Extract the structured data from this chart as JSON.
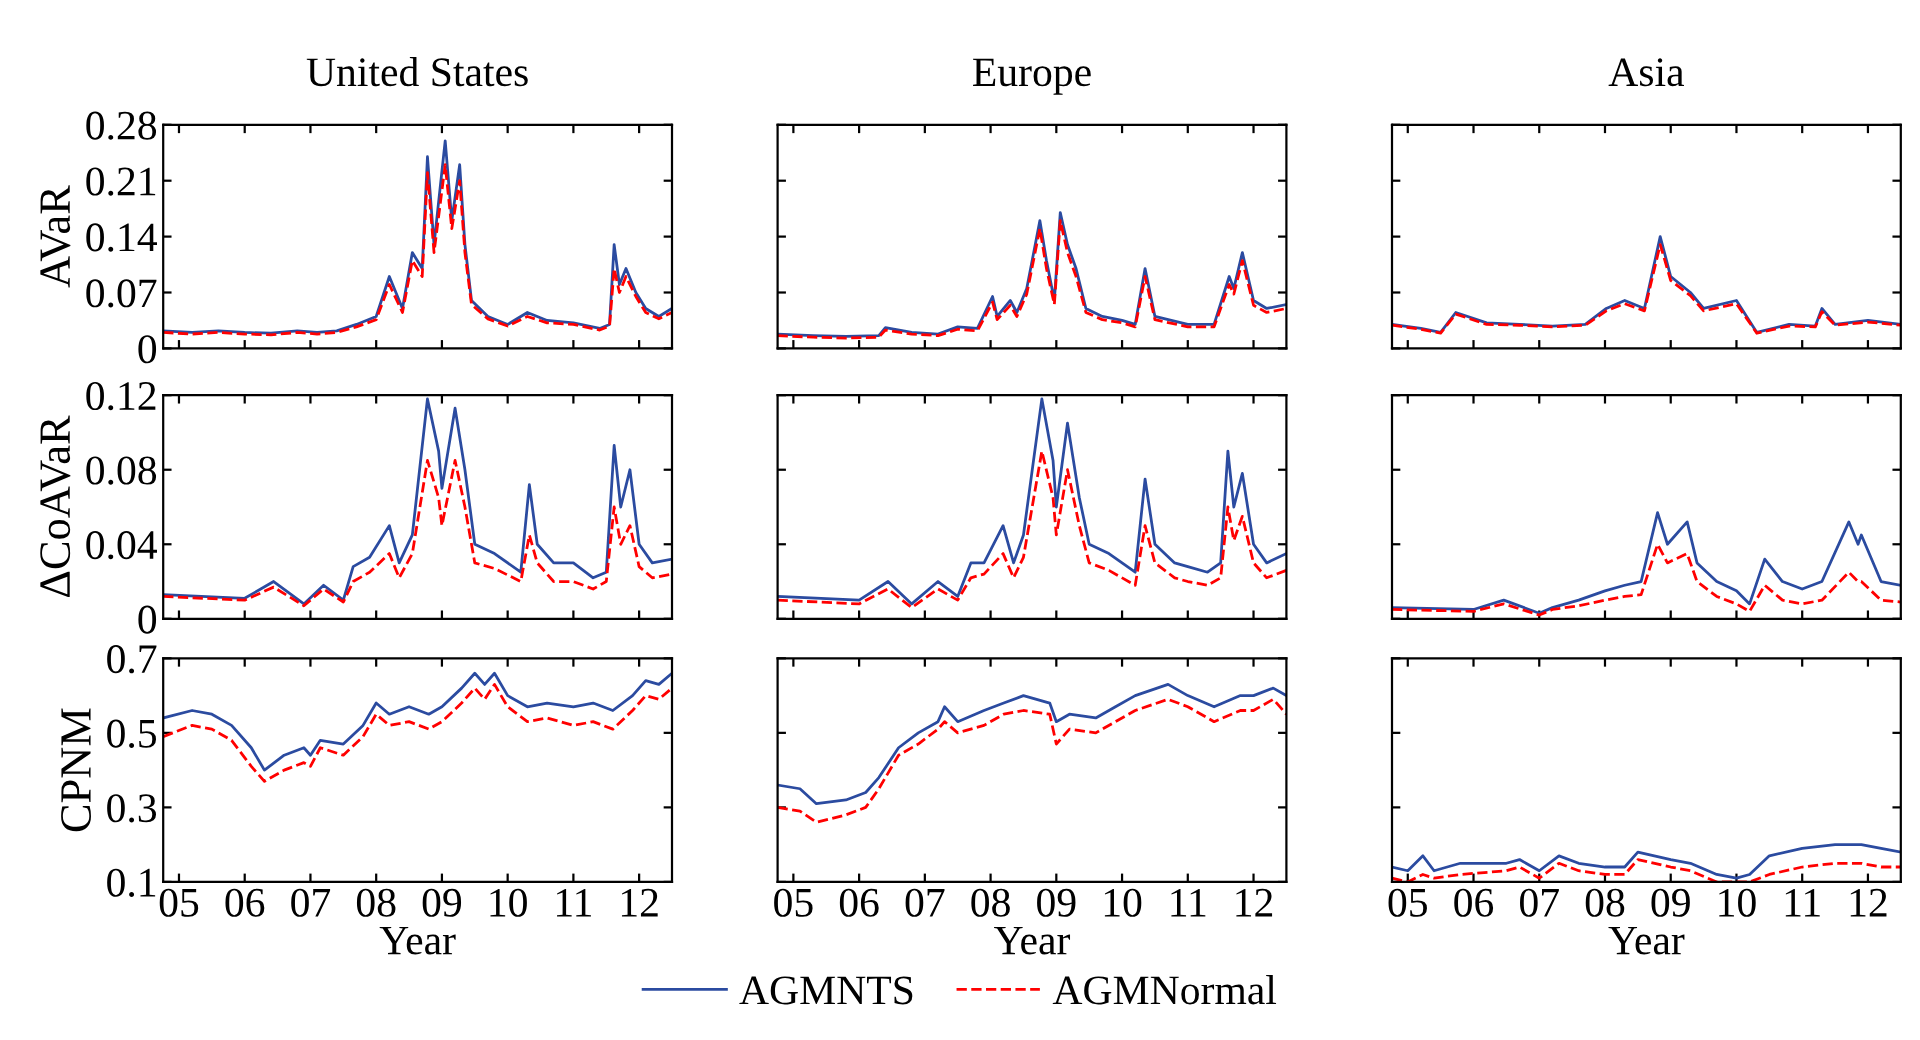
{
  "chart_data": [
    {
      "type": "line",
      "title": "United States",
      "ylabel": "AVaR",
      "tick_labels": "y",
      "xlim": [
        2004.76,
        2012.5
      ],
      "ylim": [
        0,
        0.28
      ],
      "yticks": [
        0,
        0.07,
        0.14,
        0.21,
        0.28
      ],
      "xticks": [
        {
          "value": 2005,
          "label": null
        },
        {
          "value": 2006,
          "label": null
        },
        {
          "value": 2007,
          "label": null
        },
        {
          "value": 2008,
          "label": null
        },
        {
          "value": 2009,
          "label": null
        },
        {
          "value": 2010,
          "label": null
        },
        {
          "value": 2011,
          "label": null
        },
        {
          "value": 2012,
          "label": null
        }
      ],
      "x": [
        2004.76,
        2005.2,
        2005.6,
        2006.0,
        2006.4,
        2006.8,
        2007.1,
        2007.4,
        2007.7,
        2008.0,
        2008.2,
        2008.4,
        2008.55,
        2008.7,
        2008.78,
        2008.88,
        2009.05,
        2009.15,
        2009.27,
        2009.35,
        2009.45,
        2009.7,
        2010.0,
        2010.3,
        2010.6,
        2011.0,
        2011.4,
        2011.55,
        2011.62,
        2011.7,
        2011.8,
        2011.95,
        2012.1,
        2012.3,
        2012.5
      ],
      "series": [
        {
          "color": "#2b4ba0",
          "line_style": "solid",
          "values": [
            0.022,
            0.02,
            0.022,
            0.02,
            0.019,
            0.022,
            0.02,
            0.022,
            0.03,
            0.04,
            0.09,
            0.05,
            0.12,
            0.1,
            0.24,
            0.13,
            0.26,
            0.16,
            0.23,
            0.13,
            0.06,
            0.04,
            0.03,
            0.045,
            0.035,
            0.032,
            0.025,
            0.03,
            0.13,
            0.08,
            0.1,
            0.07,
            0.05,
            0.04,
            0.05
          ]
        },
        {
          "color": "#ff0000",
          "line_style": "dashed",
          "values": [
            0.02,
            0.018,
            0.02,
            0.018,
            0.017,
            0.02,
            0.018,
            0.02,
            0.027,
            0.036,
            0.08,
            0.045,
            0.11,
            0.09,
            0.22,
            0.12,
            0.23,
            0.15,
            0.21,
            0.12,
            0.055,
            0.037,
            0.028,
            0.04,
            0.032,
            0.03,
            0.023,
            0.028,
            0.1,
            0.07,
            0.09,
            0.065,
            0.045,
            0.037,
            0.045
          ]
        }
      ]
    },
    {
      "type": "line",
      "title": "Europe",
      "tick_labels": false,
      "xlim": [
        2004.76,
        2012.5
      ],
      "ylim": [
        0,
        0.28
      ],
      "yticks": [
        0,
        0.07,
        0.14,
        0.21,
        0.28
      ],
      "xticks": [
        {
          "value": 2005,
          "label": null
        },
        {
          "value": 2006,
          "label": null
        },
        {
          "value": 2007,
          "label": null
        },
        {
          "value": 2008,
          "label": null
        },
        {
          "value": 2009,
          "label": null
        },
        {
          "value": 2010,
          "label": null
        },
        {
          "value": 2011,
          "label": null
        },
        {
          "value": 2012,
          "label": null
        }
      ],
      "x": [
        2004.76,
        2005.3,
        2005.8,
        2006.3,
        2006.4,
        2006.8,
        2007.2,
        2007.5,
        2007.8,
        2008.03,
        2008.1,
        2008.3,
        2008.4,
        2008.55,
        2008.75,
        2008.85,
        2008.97,
        2009.06,
        2009.17,
        2009.3,
        2009.45,
        2009.7,
        2010.0,
        2010.2,
        2010.35,
        2010.5,
        2011.0,
        2011.4,
        2011.63,
        2011.7,
        2011.83,
        2012.0,
        2012.2,
        2012.5
      ],
      "series": [
        {
          "color": "#2b4ba0",
          "line_style": "solid",
          "values": [
            0.018,
            0.016,
            0.015,
            0.016,
            0.026,
            0.02,
            0.018,
            0.027,
            0.025,
            0.065,
            0.04,
            0.06,
            0.045,
            0.075,
            0.16,
            0.11,
            0.06,
            0.17,
            0.13,
            0.1,
            0.05,
            0.04,
            0.035,
            0.03,
            0.1,
            0.04,
            0.03,
            0.03,
            0.09,
            0.075,
            0.12,
            0.06,
            0.05,
            0.055
          ]
        },
        {
          "color": "#ff0000",
          "line_style": "dashed",
          "values": [
            0.016,
            0.014,
            0.013,
            0.014,
            0.023,
            0.018,
            0.016,
            0.024,
            0.022,
            0.058,
            0.036,
            0.054,
            0.04,
            0.068,
            0.15,
            0.1,
            0.055,
            0.16,
            0.12,
            0.09,
            0.045,
            0.036,
            0.032,
            0.027,
            0.09,
            0.036,
            0.027,
            0.027,
            0.08,
            0.068,
            0.11,
            0.054,
            0.045,
            0.05
          ]
        }
      ]
    },
    {
      "type": "line",
      "title": "Asia",
      "tick_labels": false,
      "xlim": [
        2004.76,
        2012.5
      ],
      "ylim": [
        0,
        0.28
      ],
      "yticks": [
        0,
        0.07,
        0.14,
        0.21,
        0.28
      ],
      "xticks": [
        {
          "value": 2005,
          "label": null
        },
        {
          "value": 2006,
          "label": null
        },
        {
          "value": 2007,
          "label": null
        },
        {
          "value": 2008,
          "label": null
        },
        {
          "value": 2009,
          "label": null
        },
        {
          "value": 2010,
          "label": null
        },
        {
          "value": 2011,
          "label": null
        },
        {
          "value": 2012,
          "label": null
        }
      ],
      "x": [
        2004.76,
        2005.2,
        2005.5,
        2005.73,
        2006.2,
        2006.7,
        2007.2,
        2007.7,
        2008.02,
        2008.3,
        2008.6,
        2008.84,
        2009.0,
        2009.3,
        2009.5,
        2010.0,
        2010.31,
        2010.8,
        2011.2,
        2011.3,
        2011.5,
        2012.0,
        2012.5
      ],
      "series": [
        {
          "color": "#2b4ba0",
          "line_style": "solid",
          "values": [
            0.03,
            0.025,
            0.02,
            0.045,
            0.032,
            0.03,
            0.028,
            0.03,
            0.05,
            0.06,
            0.05,
            0.14,
            0.09,
            0.07,
            0.05,
            0.06,
            0.02,
            0.03,
            0.028,
            0.05,
            0.03,
            0.035,
            0.03
          ]
        },
        {
          "color": "#ff0000",
          "line_style": "dashed",
          "values": [
            0.029,
            0.024,
            0.019,
            0.043,
            0.03,
            0.029,
            0.027,
            0.029,
            0.047,
            0.056,
            0.047,
            0.13,
            0.085,
            0.066,
            0.047,
            0.056,
            0.019,
            0.028,
            0.027,
            0.046,
            0.029,
            0.033,
            0.029
          ]
        }
      ]
    },
    {
      "type": "line",
      "ylabel": "ΔCoAVaR",
      "tick_labels": "y",
      "xlim": [
        2004.76,
        2012.5
      ],
      "ylim": [
        0,
        0.12
      ],
      "yticks": [
        0,
        0.04,
        0.08,
        0.12
      ],
      "xticks": [
        {
          "value": 2005,
          "label": null
        },
        {
          "value": 2006,
          "label": null
        },
        {
          "value": 2007,
          "label": null
        },
        {
          "value": 2008,
          "label": null
        },
        {
          "value": 2009,
          "label": null
        },
        {
          "value": 2010,
          "label": null
        },
        {
          "value": 2011,
          "label": null
        },
        {
          "value": 2012,
          "label": null
        }
      ],
      "x": [
        2004.76,
        2006.0,
        2006.44,
        2006.9,
        2007.2,
        2007.5,
        2007.65,
        2007.9,
        2008.2,
        2008.35,
        2008.55,
        2008.78,
        2008.95,
        2009.0,
        2009.2,
        2009.35,
        2009.5,
        2009.8,
        2010.2,
        2010.33,
        2010.45,
        2010.7,
        2011.0,
        2011.3,
        2011.5,
        2011.62,
        2011.72,
        2011.86,
        2012.0,
        2012.2,
        2012.5
      ],
      "series": [
        {
          "color": "#2b4ba0",
          "line_style": "solid",
          "values": [
            0.013,
            0.011,
            0.02,
            0.008,
            0.018,
            0.01,
            0.028,
            0.033,
            0.05,
            0.03,
            0.045,
            0.118,
            0.09,
            0.07,
            0.113,
            0.08,
            0.04,
            0.035,
            0.025,
            0.072,
            0.04,
            0.03,
            0.03,
            0.022,
            0.025,
            0.093,
            0.06,
            0.08,
            0.04,
            0.03,
            0.032
          ]
        },
        {
          "color": "#ff0000",
          "line_style": "dashed",
          "values": [
            0.012,
            0.01,
            0.017,
            0.007,
            0.016,
            0.009,
            0.02,
            0.025,
            0.035,
            0.022,
            0.035,
            0.085,
            0.065,
            0.05,
            0.085,
            0.06,
            0.03,
            0.027,
            0.02,
            0.045,
            0.03,
            0.02,
            0.02,
            0.016,
            0.02,
            0.06,
            0.04,
            0.05,
            0.028,
            0.022,
            0.024
          ]
        }
      ]
    },
    {
      "type": "line",
      "tick_labels": false,
      "xlim": [
        2004.76,
        2012.5
      ],
      "ylim": [
        0,
        0.12
      ],
      "yticks": [
        0,
        0.04,
        0.08,
        0.12
      ],
      "xticks": [
        {
          "value": 2005,
          "label": null
        },
        {
          "value": 2006,
          "label": null
        },
        {
          "value": 2007,
          "label": null
        },
        {
          "value": 2008,
          "label": null
        },
        {
          "value": 2009,
          "label": null
        },
        {
          "value": 2010,
          "label": null
        },
        {
          "value": 2011,
          "label": null
        },
        {
          "value": 2012,
          "label": null
        }
      ],
      "x": [
        2004.76,
        2006.0,
        2006.44,
        2006.8,
        2007.2,
        2007.5,
        2007.7,
        2007.9,
        2008.19,
        2008.35,
        2008.5,
        2008.78,
        2008.95,
        2009.0,
        2009.17,
        2009.35,
        2009.5,
        2009.8,
        2010.2,
        2010.35,
        2010.5,
        2010.8,
        2011.0,
        2011.3,
        2011.5,
        2011.61,
        2011.7,
        2011.83,
        2012.0,
        2012.2,
        2012.5
      ],
      "series": [
        {
          "color": "#2b4ba0",
          "line_style": "solid",
          "values": [
            0.012,
            0.01,
            0.02,
            0.008,
            0.02,
            0.012,
            0.03,
            0.03,
            0.05,
            0.03,
            0.045,
            0.118,
            0.085,
            0.06,
            0.105,
            0.065,
            0.04,
            0.035,
            0.025,
            0.075,
            0.04,
            0.03,
            0.028,
            0.025,
            0.03,
            0.09,
            0.06,
            0.078,
            0.04,
            0.03,
            0.035
          ]
        },
        {
          "color": "#ff0000",
          "line_style": "dashed",
          "values": [
            0.01,
            0.008,
            0.016,
            0.006,
            0.016,
            0.01,
            0.022,
            0.024,
            0.035,
            0.022,
            0.033,
            0.09,
            0.065,
            0.045,
            0.08,
            0.05,
            0.03,
            0.026,
            0.018,
            0.05,
            0.03,
            0.022,
            0.02,
            0.018,
            0.022,
            0.06,
            0.042,
            0.055,
            0.03,
            0.022,
            0.026
          ]
        }
      ]
    },
    {
      "type": "line",
      "tick_labels": false,
      "xlim": [
        2004.76,
        2012.5
      ],
      "ylim": [
        0,
        0.12
      ],
      "yticks": [
        0,
        0.04,
        0.08,
        0.12
      ],
      "xticks": [
        {
          "value": 2005,
          "label": null
        },
        {
          "value": 2006,
          "label": null
        },
        {
          "value": 2007,
          "label": null
        },
        {
          "value": 2008,
          "label": null
        },
        {
          "value": 2009,
          "label": null
        },
        {
          "value": 2010,
          "label": null
        },
        {
          "value": 2011,
          "label": null
        },
        {
          "value": 2012,
          "label": null
        }
      ],
      "x": [
        2004.76,
        2006.0,
        2006.46,
        2007.0,
        2007.2,
        2007.6,
        2008.0,
        2008.3,
        2008.55,
        2008.8,
        2008.95,
        2009.25,
        2009.4,
        2009.7,
        2010.0,
        2010.2,
        2010.43,
        2010.7,
        2011.0,
        2011.3,
        2011.71,
        2011.85,
        2011.9,
        2012.2,
        2012.5
      ],
      "series": [
        {
          "color": "#2b4ba0",
          "line_style": "solid",
          "values": [
            0.006,
            0.005,
            0.01,
            0.003,
            0.006,
            0.01,
            0.015,
            0.018,
            0.02,
            0.057,
            0.04,
            0.052,
            0.03,
            0.02,
            0.015,
            0.008,
            0.032,
            0.02,
            0.016,
            0.02,
            0.052,
            0.04,
            0.045,
            0.02,
            0.018
          ]
        },
        {
          "color": "#ff0000",
          "line_style": "dashed",
          "values": [
            0.005,
            0.004,
            0.008,
            0.002,
            0.005,
            0.007,
            0.01,
            0.012,
            0.013,
            0.04,
            0.03,
            0.035,
            0.02,
            0.012,
            0.008,
            0.004,
            0.018,
            0.01,
            0.008,
            0.01,
            0.025,
            0.02,
            0.02,
            0.01,
            0.009
          ]
        }
      ]
    },
    {
      "type": "line",
      "ylabel": "CPNM",
      "xlabel": "Year",
      "xlim": [
        2004.76,
        2012.5
      ],
      "ylim": [
        0.1,
        0.7
      ],
      "yticks": [
        0.1,
        0.3,
        0.5,
        0.7
      ],
      "xticks": [
        {
          "value": 2005,
          "label": "05"
        },
        {
          "value": 2006,
          "label": "06"
        },
        {
          "value": 2007,
          "label": "07"
        },
        {
          "value": 2008,
          "label": "08"
        },
        {
          "value": 2009,
          "label": "09"
        },
        {
          "value": 2010,
          "label": "10"
        },
        {
          "value": 2011,
          "label": "11"
        },
        {
          "value": 2012,
          "label": "12"
        }
      ],
      "x": [
        2004.76,
        2005.2,
        2005.5,
        2005.8,
        2006.1,
        2006.3,
        2006.6,
        2006.9,
        2007.0,
        2007.15,
        2007.5,
        2007.8,
        2008.0,
        2008.2,
        2008.5,
        2008.8,
        2009.0,
        2009.3,
        2009.5,
        2009.65,
        2009.8,
        2010.0,
        2010.3,
        2010.6,
        2011.0,
        2011.3,
        2011.6,
        2011.9,
        2012.1,
        2012.3,
        2012.5
      ],
      "series": [
        {
          "color": "#2b4ba0",
          "line_style": "solid",
          "values": [
            0.54,
            0.56,
            0.55,
            0.52,
            0.46,
            0.4,
            0.44,
            0.46,
            0.44,
            0.48,
            0.47,
            0.52,
            0.58,
            0.55,
            0.57,
            0.55,
            0.57,
            0.62,
            0.66,
            0.63,
            0.66,
            0.6,
            0.57,
            0.58,
            0.57,
            0.58,
            0.56,
            0.6,
            0.64,
            0.63,
            0.66
          ]
        },
        {
          "color": "#ff0000",
          "line_style": "dashed",
          "values": [
            0.49,
            0.52,
            0.51,
            0.48,
            0.41,
            0.37,
            0.4,
            0.42,
            0.41,
            0.46,
            0.44,
            0.49,
            0.55,
            0.52,
            0.53,
            0.51,
            0.53,
            0.58,
            0.62,
            0.59,
            0.63,
            0.57,
            0.53,
            0.54,
            0.52,
            0.53,
            0.51,
            0.56,
            0.6,
            0.59,
            0.62
          ]
        }
      ]
    },
    {
      "type": "line",
      "xlabel": "Year",
      "tick_labels": "x",
      "legend": "bottom",
      "xlim": [
        2004.76,
        2012.5
      ],
      "ylim": [
        0.1,
        0.7
      ],
      "yticks": [
        0.1,
        0.3,
        0.5,
        0.7
      ],
      "xticks": [
        {
          "value": 2005,
          "label": "05"
        },
        {
          "value": 2006,
          "label": "06"
        },
        {
          "value": 2007,
          "label": "07"
        },
        {
          "value": 2008,
          "label": "08"
        },
        {
          "value": 2009,
          "label": "09"
        },
        {
          "value": 2010,
          "label": "10"
        },
        {
          "value": 2011,
          "label": "11"
        },
        {
          "value": 2012,
          "label": "12"
        }
      ],
      "x": [
        2004.76,
        2005.1,
        2005.35,
        2005.8,
        2006.1,
        2006.3,
        2006.6,
        2006.9,
        2007.2,
        2007.3,
        2007.5,
        2007.9,
        2008.2,
        2008.5,
        2008.9,
        2009.0,
        2009.2,
        2009.6,
        2009.9,
        2010.2,
        2010.7,
        2011.0,
        2011.4,
        2011.8,
        2012.0,
        2012.3,
        2012.5
      ],
      "series": [
        {
          "name": "AGMNTS",
          "color": "#2b4ba0",
          "line_style": "solid",
          "values": [
            0.36,
            0.35,
            0.31,
            0.32,
            0.34,
            0.38,
            0.46,
            0.5,
            0.53,
            0.57,
            0.53,
            0.56,
            0.58,
            0.6,
            0.58,
            0.53,
            0.55,
            0.54,
            0.57,
            0.6,
            0.63,
            0.6,
            0.57,
            0.6,
            0.6,
            0.62,
            0.6
          ]
        },
        {
          "name": "AGMNormal",
          "color": "#ff0000",
          "line_style": "dashed",
          "values": [
            0.3,
            0.29,
            0.26,
            0.28,
            0.3,
            0.35,
            0.44,
            0.47,
            0.51,
            0.53,
            0.5,
            0.52,
            0.55,
            0.56,
            0.55,
            0.47,
            0.51,
            0.5,
            0.53,
            0.56,
            0.59,
            0.57,
            0.53,
            0.56,
            0.56,
            0.59,
            0.55
          ]
        }
      ]
    },
    {
      "type": "line",
      "xlabel": "Year",
      "tick_labels": "x",
      "xlim": [
        2004.76,
        2012.5
      ],
      "ylim": [
        0.1,
        0.7
      ],
      "yticks": [
        0.1,
        0.3,
        0.5,
        0.7
      ],
      "xticks": [
        {
          "value": 2005,
          "label": "05"
        },
        {
          "value": 2006,
          "label": "06"
        },
        {
          "value": 2007,
          "label": "07"
        },
        {
          "value": 2008,
          "label": "08"
        },
        {
          "value": 2009,
          "label": "09"
        },
        {
          "value": 2010,
          "label": "10"
        },
        {
          "value": 2011,
          "label": "11"
        },
        {
          "value": 2012,
          "label": "12"
        }
      ],
      "x": [
        2004.76,
        2005.0,
        2005.23,
        2005.4,
        2005.8,
        2006.5,
        2006.7,
        2007.0,
        2007.3,
        2007.6,
        2008.0,
        2008.3,
        2008.5,
        2009.0,
        2009.3,
        2009.7,
        2010.0,
        2010.2,
        2010.5,
        2011.0,
        2011.5,
        2011.9,
        2012.2,
        2012.5
      ],
      "series": [
        {
          "color": "#2b4ba0",
          "line_style": "solid",
          "values": [
            0.14,
            0.13,
            0.17,
            0.13,
            0.15,
            0.15,
            0.16,
            0.13,
            0.17,
            0.15,
            0.14,
            0.14,
            0.18,
            0.16,
            0.15,
            0.12,
            0.11,
            0.12,
            0.17,
            0.19,
            0.2,
            0.2,
            0.19,
            0.18
          ]
        },
        {
          "color": "#ff0000",
          "line_style": "dashed",
          "values": [
            0.11,
            0.1,
            0.12,
            0.11,
            0.12,
            0.13,
            0.14,
            0.11,
            0.15,
            0.13,
            0.12,
            0.12,
            0.16,
            0.14,
            0.13,
            0.1,
            0.1,
            0.1,
            0.12,
            0.14,
            0.15,
            0.15,
            0.14,
            0.14
          ]
        }
      ]
    }
  ]
}
